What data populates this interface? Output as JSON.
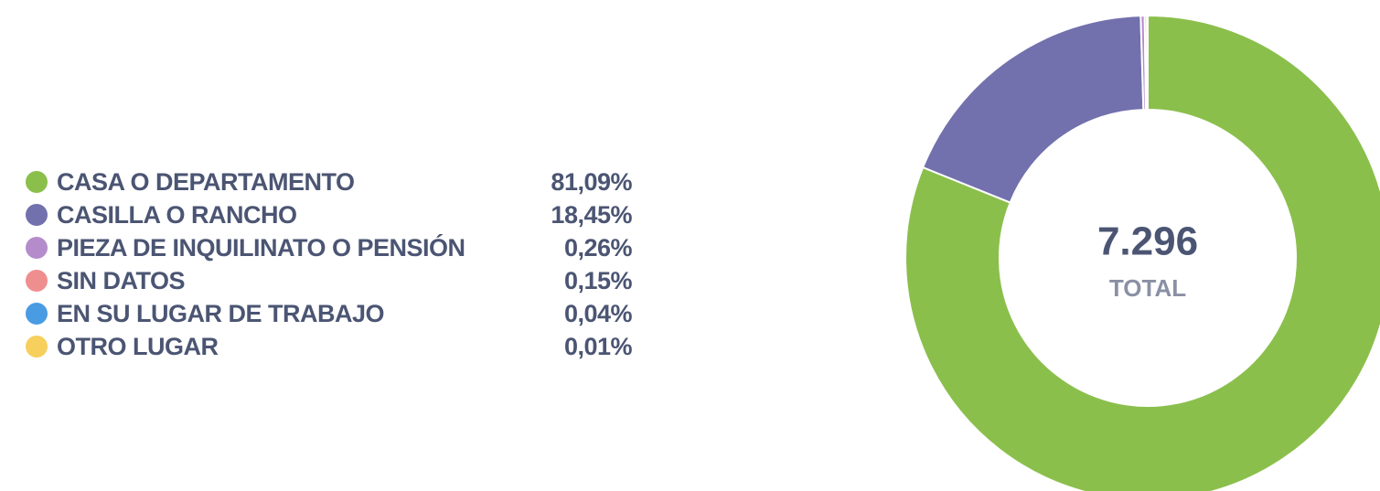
{
  "chart_data": {
    "type": "donut",
    "categories": [
      "CASA O DEPARTAMENTO",
      "CASILLA O RANCHO",
      "PIEZA DE INQUILINATO O PENSIÓN",
      "SIN DATOS",
      "EN SU LUGAR DE TRABAJO",
      "OTRO LUGAR"
    ],
    "values": [
      81.09,
      18.45,
      0.26,
      0.15,
      0.04,
      0.01
    ],
    "value_labels": [
      "81,09%",
      "18,45%",
      "0,26%",
      "0,15%",
      "0,04%",
      "0,01%"
    ],
    "colors": [
      "#8bbf4c",
      "#7270ad",
      "#b48ccb",
      "#ef8e8e",
      "#4a9ce2",
      "#f6cf5c"
    ],
    "center_value": "7.296",
    "center_caption": "TOTAL"
  }
}
